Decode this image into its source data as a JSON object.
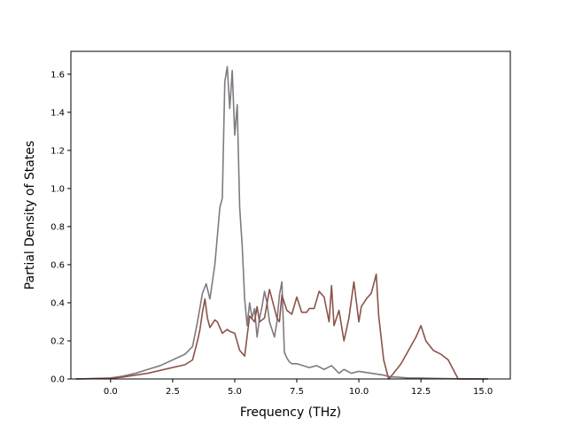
{
  "chart_data": {
    "type": "line",
    "title": "",
    "xlabel": "Frequency (THz)",
    "ylabel": "Partial Density of States",
    "xlim": [
      -1.6,
      16.1
    ],
    "ylim": [
      0.0,
      1.72
    ],
    "xticks": [
      0.0,
      2.5,
      5.0,
      7.5,
      10.0,
      12.5,
      15.0
    ],
    "xtick_labels": [
      "0.0",
      "2.5",
      "5.0",
      "7.5",
      "10.0",
      "12.5",
      "15.0"
    ],
    "yticks": [
      0.0,
      0.2,
      0.4,
      0.6,
      0.8,
      1.0,
      1.2,
      1.4,
      1.6
    ],
    "ytick_labels": [
      "0.0",
      "0.2",
      "0.4",
      "0.6",
      "0.8",
      "1.0",
      "1.2",
      "1.4",
      "1.6"
    ],
    "grid": false,
    "series": [
      {
        "color": "#7f7a80",
        "x": [
          -1.4,
          0.0,
          0.5,
          1.0,
          1.5,
          2.0,
          2.5,
          3.0,
          3.3,
          3.5,
          3.7,
          3.85,
          4.0,
          4.2,
          4.4,
          4.5,
          4.6,
          4.7,
          4.8,
          4.9,
          5.0,
          5.1,
          5.2,
          5.3,
          5.4,
          5.5,
          5.6,
          5.7,
          5.8,
          5.9,
          6.0,
          6.1,
          6.2,
          6.3,
          6.4,
          6.5,
          6.6,
          6.7,
          6.8,
          6.9,
          7.0,
          7.1,
          7.2,
          7.3,
          7.5,
          8.0,
          8.3,
          8.6,
          8.9,
          9.2,
          9.4,
          9.7,
          10.0,
          10.5,
          11.0,
          11.3,
          11.5,
          12.0,
          12.5,
          13.0,
          13.5,
          14.0,
          15.2
        ],
        "y": [
          0.0,
          0.005,
          0.015,
          0.03,
          0.05,
          0.07,
          0.1,
          0.13,
          0.17,
          0.3,
          0.45,
          0.5,
          0.42,
          0.6,
          0.9,
          0.95,
          1.56,
          1.64,
          1.42,
          1.62,
          1.28,
          1.44,
          0.9,
          0.7,
          0.42,
          0.28,
          0.4,
          0.32,
          0.37,
          0.22,
          0.32,
          0.38,
          0.46,
          0.4,
          0.3,
          0.26,
          0.22,
          0.3,
          0.44,
          0.51,
          0.14,
          0.11,
          0.09,
          0.08,
          0.08,
          0.06,
          0.07,
          0.05,
          0.07,
          0.03,
          0.05,
          0.03,
          0.04,
          0.03,
          0.02,
          0.01,
          0.01,
          0.005,
          0.005,
          0.003,
          0.002,
          0.001,
          0.0
        ]
      },
      {
        "color": "#8b5349",
        "x": [
          -1.4,
          0.0,
          0.5,
          1.0,
          1.5,
          2.0,
          2.5,
          3.0,
          3.3,
          3.5,
          3.6,
          3.7,
          3.8,
          3.9,
          4.0,
          4.2,
          4.3,
          4.5,
          4.7,
          4.8,
          5.0,
          5.2,
          5.4,
          5.6,
          5.8,
          5.9,
          6.0,
          6.2,
          6.4,
          6.5,
          6.7,
          6.8,
          6.9,
          7.1,
          7.3,
          7.5,
          7.7,
          7.9,
          8.0,
          8.2,
          8.4,
          8.6,
          8.8,
          8.9,
          9.0,
          9.2,
          9.4,
          9.6,
          9.8,
          10.0,
          10.1,
          10.3,
          10.5,
          10.7,
          10.8,
          11.0,
          11.2,
          11.4,
          11.7,
          12.0,
          12.3,
          12.5,
          12.7,
          13.0,
          13.3,
          13.6,
          13.8,
          14.0,
          15.2
        ],
        "y": [
          0.0,
          0.003,
          0.01,
          0.02,
          0.03,
          0.045,
          0.06,
          0.075,
          0.1,
          0.2,
          0.26,
          0.35,
          0.42,
          0.32,
          0.27,
          0.31,
          0.3,
          0.24,
          0.26,
          0.25,
          0.24,
          0.15,
          0.12,
          0.33,
          0.3,
          0.38,
          0.3,
          0.32,
          0.47,
          0.42,
          0.32,
          0.3,
          0.44,
          0.36,
          0.34,
          0.43,
          0.35,
          0.35,
          0.37,
          0.37,
          0.46,
          0.43,
          0.3,
          0.49,
          0.28,
          0.36,
          0.2,
          0.32,
          0.51,
          0.3,
          0.38,
          0.42,
          0.45,
          0.55,
          0.33,
          0.1,
          0.0,
          0.03,
          0.08,
          0.15,
          0.22,
          0.28,
          0.2,
          0.15,
          0.13,
          0.1,
          0.05,
          0.0,
          0.0
        ]
      }
    ]
  }
}
